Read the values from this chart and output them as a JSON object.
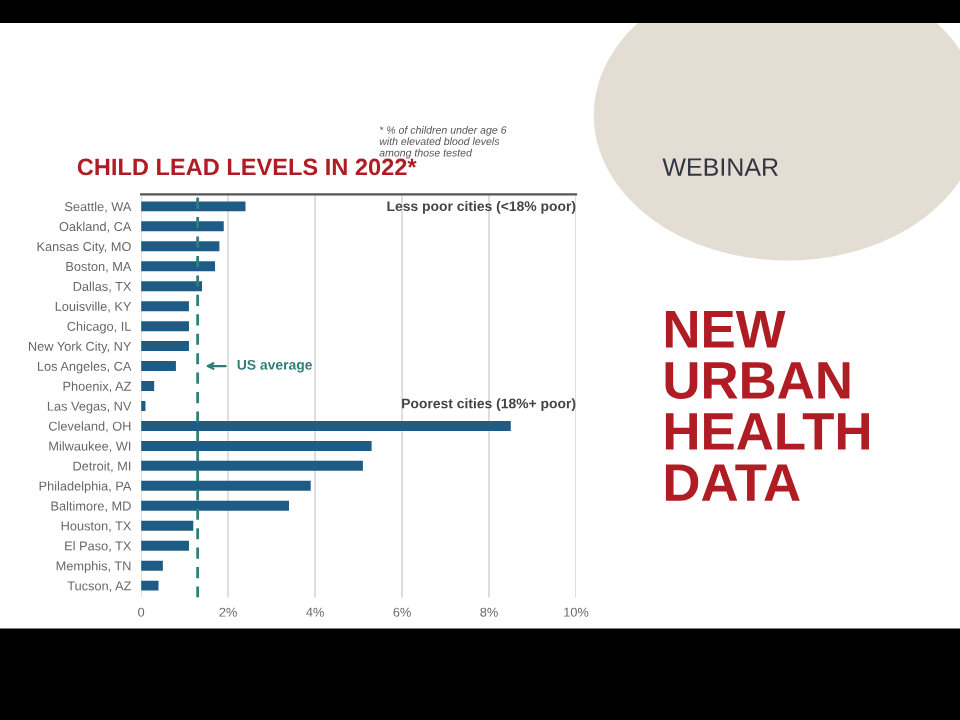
{
  "chart_data": {
    "type": "bar",
    "orientation": "horizontal",
    "title": "CHILD LEAD LEVELS IN 2022*",
    "subtitle": "* % of children under age 6\nwith elevated blood levels\namong those tested",
    "categories": [
      "Seattle, WA",
      "Oakland, CA",
      "Kansas City, MO",
      "Boston, MA",
      "Dallas, TX",
      "Louisville, KY",
      "Chicago, IL",
      "New York City, NY",
      "Los Angeles, CA",
      "Phoenix, AZ",
      "Las Vegas, NV",
      "Cleveland, OH",
      "Milwaukee, WI",
      "Detroit, MI",
      "Philadelphia, PA",
      "Baltimore, MD",
      "Houston, TX",
      "El Paso, TX",
      "Memphis, TN",
      "Tucson, AZ"
    ],
    "values": [
      2.4,
      1.9,
      1.8,
      1.7,
      1.4,
      1.1,
      1.1,
      1.1,
      0.8,
      0.3,
      0.1,
      8.5,
      5.3,
      5.1,
      3.9,
      3.4,
      1.2,
      1.1,
      0.5,
      0.4
    ],
    "color": "#1f5c85",
    "xlim": [
      0,
      10
    ],
    "xticks": [
      0,
      {
        "value": 2,
        "label": "2%"
      },
      {
        "value": 4,
        "label": "4%"
      },
      {
        "value": 6,
        "label": "6%"
      },
      {
        "value": 8,
        "label": "8%"
      },
      {
        "value": 10,
        "label": "10%"
      }
    ],
    "grid": "x",
    "ref_lines": [
      {
        "axis": "x",
        "value": 1.3,
        "label": "US average",
        "color": "#2e7f7a",
        "line_style": "dashed"
      }
    ],
    "annotations": [
      "Less poor cities (<18% poor)",
      "Poorest cities (18%+ poor)",
      "WEBINAR",
      "NEW\nURBAN\nHEALTH\nDATA"
    ]
  }
}
